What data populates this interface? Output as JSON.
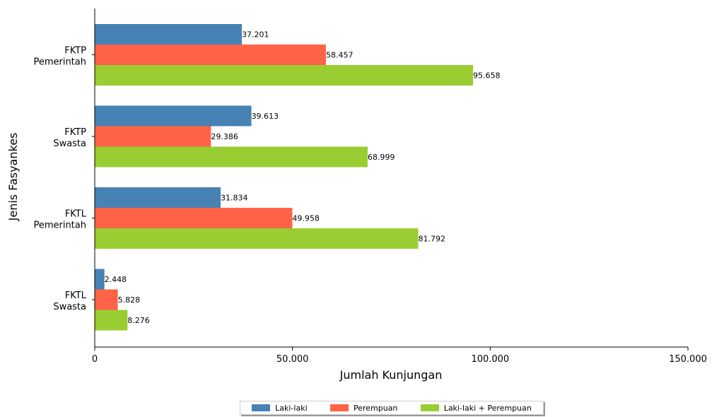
{
  "chart_data": {
    "type": "bar",
    "orientation": "horizontal",
    "title": "",
    "xlabel": "Jumlah Kunjungan",
    "ylabel": "Jenis Fasyankes",
    "categories": [
      [
        "FKTP",
        "Pemerintah"
      ],
      [
        "FKTP",
        "Swasta"
      ],
      [
        "FKTL",
        "Pemerintah"
      ],
      [
        "FKTL",
        "Swasta"
      ]
    ],
    "xlim": [
      0,
      150000
    ],
    "xticks": [
      {
        "value": 0,
        "label": "0"
      },
      {
        "value": 50000,
        "label": "50.000"
      },
      {
        "value": 100000,
        "label": "100.000"
      },
      {
        "value": 150000,
        "label": "150.000"
      }
    ],
    "grid": false,
    "legend_position": "bottom-center",
    "series": [
      {
        "name": "Laki-laki",
        "color": "#4682b4",
        "values": [
          37201,
          39613,
          31834,
          2448
        ],
        "labels": [
          "37.201",
          "39.613",
          "31.834",
          "2.448"
        ]
      },
      {
        "name": "Perempuan",
        "color": "#ff6347",
        "values": [
          58457,
          29386,
          49958,
          5828
        ],
        "labels": [
          "58.457",
          "29.386",
          "49.958",
          "5.828"
        ]
      },
      {
        "name": "Laki-laki + Perempuan",
        "color": "#9acd32",
        "values": [
          95658,
          68999,
          81792,
          8276
        ],
        "labels": [
          "95.658",
          "68.999",
          "81.792",
          "8.276"
        ]
      }
    ]
  }
}
